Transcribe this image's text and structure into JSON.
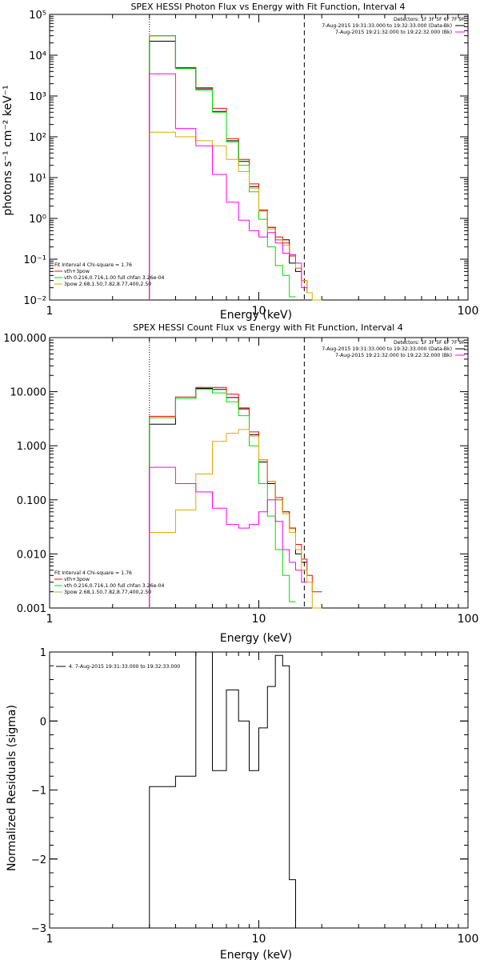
{
  "colors": {
    "black": "#000000",
    "red": "#ff0000",
    "green": "#00dd00",
    "magenta": "#ff00ff",
    "orange": "#ddaa00",
    "background": "#ffffff"
  },
  "chart_data": [
    {
      "id": "photon",
      "type": "line",
      "title": "SPEX HESSI Photon Flux vs Energy with Fit Function, Interval 4",
      "xlabel": "Energy (keV)",
      "ylabel": "photons s⁻¹ cm⁻² keV⁻¹",
      "xscale": "log",
      "yscale": "log",
      "xlim": [
        1,
        100
      ],
      "ylim": [
        0.01,
        100000
      ],
      "xticks": [
        {
          "v": 1,
          "label": "1"
        },
        {
          "v": 10,
          "label": "10"
        },
        {
          "v": 100,
          "label": "100"
        }
      ],
      "yticks": [
        {
          "v": 0.01,
          "label": "10⁻²"
        },
        {
          "v": 0.1,
          "label": "10⁻¹"
        },
        {
          "v": 1,
          "label": "10⁰"
        },
        {
          "v": 10,
          "label": "10¹"
        },
        {
          "v": 100,
          "label": "10²"
        },
        {
          "v": 1000,
          "label": "10³"
        },
        {
          "v": 10000,
          "label": "10⁴"
        },
        {
          "v": 100000,
          "label": "10⁵"
        }
      ],
      "vlines": [
        {
          "x": 3.0,
          "style": "dotted"
        },
        {
          "x": 16.5,
          "style": "dashed"
        }
      ],
      "legend_tr": [
        "Detectors: 1F 3F 5F 6F 7F 9F",
        "7-Aug-2015 19:31:33.000 to 19:32:33.000 (Data-Bk)",
        "7-Aug-2015 19:21:32.000 to 19:22:32.000 (Bk)"
      ],
      "legend_bl": [
        "Fit Interval  4   Chi-square = 1.76",
        "vth+3pow",
        "vth 0.216,0.716,1.00  full chfan 3.26e-04",
        "3pow 2.68,1.50,7.82,8.77,400,2.50"
      ],
      "edges": [
        3.0,
        4.0,
        5.0,
        6.0,
        7.0,
        8.0,
        9.0,
        10.0,
        11.0,
        12.0,
        13.0,
        14.0,
        15.0,
        16.0,
        17.0,
        18.0,
        20.0
      ],
      "series": [
        {
          "name": "Data-Bk",
          "color": "black",
          "values": [
            22000,
            4800,
            1500,
            420,
            80,
            25,
            6,
            1.6,
            0.6,
            0.3,
            0.3,
            0.08,
            0.05,
            null,
            null,
            null
          ]
        },
        {
          "name": "vth+3pow",
          "color": "red",
          "values": [
            30000,
            5000,
            1600,
            500,
            90,
            28,
            7,
            1.6,
            0.6,
            0.35,
            0.25,
            0.12,
            0.06,
            0.03,
            0.015,
            null
          ]
        },
        {
          "name": "vth",
          "color": "green",
          "values": [
            30000,
            4700,
            1400,
            400,
            75,
            20,
            4.5,
            0.95,
            0.2,
            0.07,
            0.04,
            0.012,
            null,
            null,
            null,
            null
          ]
        },
        {
          "name": "3pow",
          "color": "orange",
          "values": [
            130,
            100,
            80,
            60,
            28,
            14,
            5.5,
            1.5,
            0.55,
            0.3,
            0.22,
            0.13,
            0.06,
            0.03,
            0.015,
            0.01
          ]
        },
        {
          "name": "Bk",
          "color": "magenta",
          "values": [
            3500,
            160,
            60,
            12,
            2.5,
            0.9,
            0.5,
            0.35,
            0.45,
            0.25,
            0.14,
            0.13,
            0.08,
            0.02,
            null,
            null
          ]
        }
      ]
    },
    {
      "id": "count",
      "type": "line",
      "title": "SPEX HESSI Count Flux vs Energy with Fit Function, Interval 4",
      "xlabel": "Energy (keV)",
      "ylabel": "",
      "xscale": "log",
      "yscale": "log",
      "xlim": [
        1,
        100
      ],
      "ylim": [
        0.001,
        100
      ],
      "xticks": [
        {
          "v": 1,
          "label": "1"
        },
        {
          "v": 10,
          "label": "10"
        },
        {
          "v": 100,
          "label": "100"
        }
      ],
      "yticks": [
        {
          "v": 0.001,
          "label": "0.001"
        },
        {
          "v": 0.01,
          "label": "0.010"
        },
        {
          "v": 0.1,
          "label": "0.100"
        },
        {
          "v": 1,
          "label": "1.000"
        },
        {
          "v": 10,
          "label": "10.000"
        },
        {
          "v": 100,
          "label": "100.000"
        }
      ],
      "vlines": [
        {
          "x": 3.0,
          "style": "dotted"
        },
        {
          "x": 16.5,
          "style": "dashed"
        }
      ],
      "legend_tr": [
        "Detectors: 1F 3F 5F 6F 7F 9F",
        "7-Aug-2015 19:31:33.000 to 19:32:33.000 (Data-Bk)",
        "7-Aug-2015 19:21:32.000 to 19:22:32.000 (Bk)"
      ],
      "legend_bl": [
        "Fit Interval  4   Chi-square = 1.76",
        "vth+3pow",
        "vth 0.216,0.716,1.00  full chfan 3.26e-04",
        "3pow 2.68,1.50,7.82,8.77,400,2.50"
      ],
      "edges": [
        3.0,
        4.0,
        5.0,
        6.0,
        7.0,
        8.0,
        9.0,
        10.0,
        11.0,
        12.0,
        13.0,
        14.0,
        15.0,
        16.0,
        17.0,
        18.0,
        20.0
      ],
      "series": [
        {
          "name": "Data-Bk",
          "color": "black",
          "values": [
            2.5,
            7.5,
            11.5,
            11,
            7.8,
            4.8,
            1.6,
            0.5,
            0.2,
            0.1,
            0.06,
            0.03,
            0.01,
            0.007,
            null,
            null
          ]
        },
        {
          "name": "vth+3pow",
          "color": "red",
          "values": [
            3.5,
            8,
            12,
            12,
            9,
            5,
            1.8,
            0.55,
            0.22,
            0.11,
            0.06,
            0.03,
            0.015,
            0.008,
            0.004,
            0.002
          ]
        },
        {
          "name": "vth",
          "color": "green",
          "values": [
            3.3,
            7.5,
            11,
            9.5,
            6.5,
            3.6,
            1,
            0.2,
            0.05,
            0.012,
            0.004,
            0.0013,
            null,
            null,
            null,
            null
          ]
        },
        {
          "name": "3pow",
          "color": "orange",
          "values": [
            0.025,
            0.065,
            0.3,
            1.2,
            1.7,
            2,
            1.5,
            0.55,
            0.22,
            0.1,
            0.055,
            0.025,
            0.012,
            0.005,
            0.003,
            0.001
          ]
        },
        {
          "name": "Bk",
          "color": "magenta",
          "values": [
            0.4,
            0.2,
            0.14,
            0.07,
            0.035,
            0.03,
            0.035,
            0.06,
            0.1,
            0.04,
            0.012,
            0.007,
            0.005,
            0.003,
            null,
            null
          ]
        }
      ]
    },
    {
      "id": "residuals",
      "type": "line",
      "title": "",
      "xlabel": "Energy (keV)",
      "ylabel": "Normalized Residuals (sigma)",
      "xscale": "log",
      "yscale": "linear",
      "xlim": [
        1,
        100
      ],
      "ylim": [
        -3,
        1
      ],
      "xticks": [
        {
          "v": 1,
          "label": "1"
        },
        {
          "v": 10,
          "label": "10"
        },
        {
          "v": 100,
          "label": "100"
        }
      ],
      "yticks": [
        {
          "v": -3,
          "label": "−3"
        },
        {
          "v": -2,
          "label": "−2"
        },
        {
          "v": -1,
          "label": "−1"
        },
        {
          "v": 0,
          "label": "0"
        },
        {
          "v": 1,
          "label": "1"
        }
      ],
      "vlines": [],
      "legend_tr": [],
      "legend_bl": [],
      "legend_tl": [
        "4.  7-Aug-2015 19:31:33.000 to 19:32:33.000"
      ],
      "edges": [
        3.0,
        4.0,
        5.0,
        6.0,
        7.0,
        8.0,
        9.0,
        10.0,
        11.0,
        12.0,
        13.0,
        14.0,
        15.0,
        16.0,
        17.0
      ],
      "series": [
        {
          "name": "",
          "color": "black",
          "values": [
            -0.95,
            -0.8,
            1.0,
            -0.72,
            0.45,
            -0.0,
            -0.72,
            -0.1,
            0.5,
            0.95,
            0.8,
            -2.3,
            -3.0,
            -3.0
          ]
        }
      ]
    }
  ]
}
